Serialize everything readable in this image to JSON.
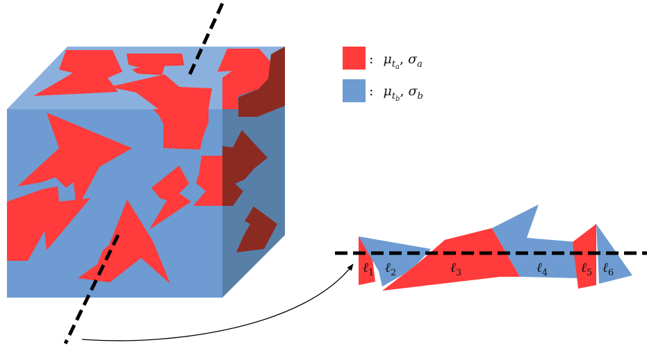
{
  "colors": {
    "phase_a": "#ff3b3b",
    "phase_a_side": "#8b2a20",
    "phase_b_front": "#6e9bd1",
    "phase_b_top": "#8cb0dd",
    "phase_b_side": "#587fa8",
    "line": "#000000"
  },
  "legend": [
    {
      "symbol": "μ",
      "subscript": "t",
      "subsub": "a",
      "sep": ", ",
      "symbol2": "σ",
      "sub2": "a",
      "color_key": "phase_a",
      "prefix": ":"
    },
    {
      "symbol": "μ",
      "subscript": "t",
      "subsub": "b",
      "sep": ", ",
      "symbol2": "σ",
      "sub2": "b",
      "color_key": "phase_b_front",
      "prefix": ":"
    }
  ],
  "segments": [
    {
      "letter": "ℓ",
      "index": "1"
    },
    {
      "letter": "ℓ",
      "index": "2"
    },
    {
      "letter": "ℓ",
      "index": "3"
    },
    {
      "letter": "ℓ",
      "index": "4"
    },
    {
      "letter": "ℓ",
      "index": "5"
    },
    {
      "letter": "ℓ",
      "index": "6"
    }
  ]
}
